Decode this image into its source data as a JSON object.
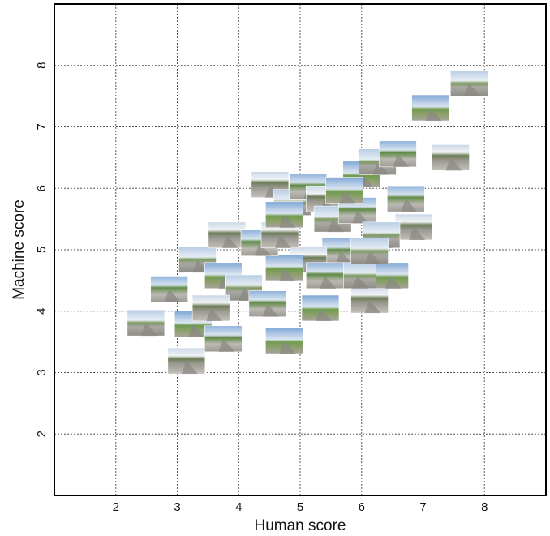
{
  "chart_data": {
    "type": "scatter",
    "x_label": "Human score",
    "y_label": "Machine score",
    "x": [
      2.49,
      2.87,
      3.15,
      3.26,
      3.33,
      3.75,
      3.81,
      3.75,
      4.08,
      4.47,
      4.51,
      4.74,
      4.87,
      5.13,
      5.4,
      5.33,
      5.53,
      5.93,
      6.13,
      6.0,
      6.26,
      6.59,
      7.45,
      7.12,
      7.75,
      6.72,
      6.85,
      6.46,
      6.32,
      5.66,
      5.13,
      4.74,
      5.93,
      4.34,
      4.67,
      4.74,
      6.13,
      5.4,
      3.55,
      5.72
    ],
    "values": [
      3.81,
      4.36,
      3.19,
      3.79,
      4.84,
      3.55,
      5.24,
      4.58,
      4.38,
      4.12,
      6.06,
      3.52,
      5.77,
      6.03,
      5.83,
      4.05,
      5.5,
      5.64,
      4.18,
      6.23,
      6.43,
      6.56,
      6.5,
      7.31,
      7.71,
      5.83,
      5.37,
      4.58,
      5.24,
      4.98,
      4.84,
      4.71,
      4.58,
      5.11,
      5.24,
      5.57,
      4.98,
      4.58,
      4.05,
      5.97
    ],
    "xlim": [
      1,
      9
    ],
    "ylim": [
      1,
      9
    ],
    "xticks": [
      2,
      3,
      4,
      5,
      6,
      7,
      8
    ],
    "yticks": [
      2,
      3,
      4,
      5,
      6,
      7,
      8
    ],
    "grid": true
  }
}
